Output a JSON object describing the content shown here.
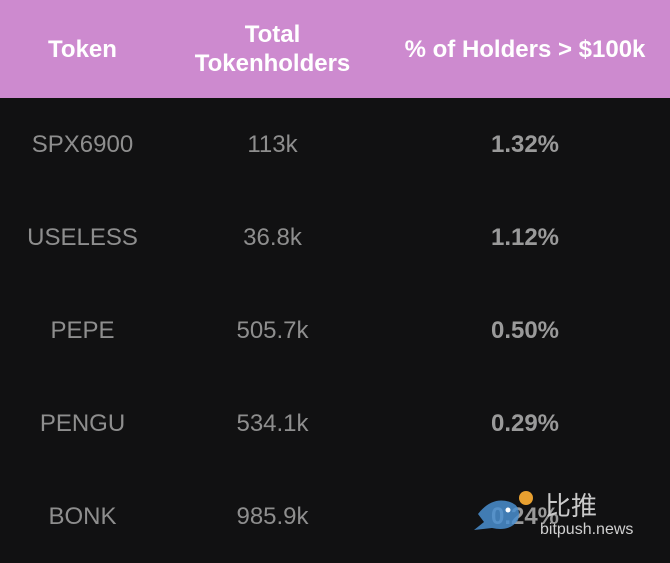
{
  "table": {
    "header": [
      "Token",
      "Total Tokenholders",
      "% of Holders > $100k"
    ],
    "rows": [
      [
        "SPX6900",
        "113k",
        "1.32%"
      ],
      [
        "USELESS",
        "36.8k",
        "1.12%"
      ],
      [
        "PEPE",
        "505.7k",
        "0.50%"
      ],
      [
        "PENGU",
        "534.1k",
        "0.29%"
      ],
      [
        "BONK",
        "985.9k",
        "0.24%"
      ]
    ]
  },
  "watermark": {
    "brand": "比推",
    "site": "bitpush.news"
  }
}
